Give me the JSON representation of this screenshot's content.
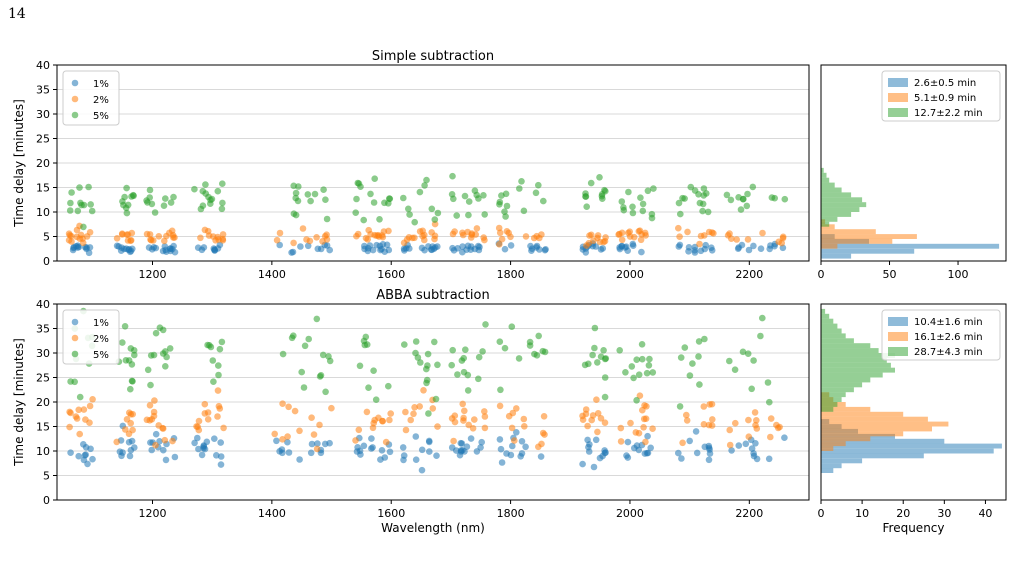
{
  "page": {
    "number": "14"
  },
  "colors": {
    "blue": "#1f77b4",
    "orange": "#ff7f0e",
    "green": "#2ca02c"
  },
  "chart_data": [
    {
      "type": "scatter",
      "title": "Simple subtraction",
      "ylabel": "Time delay [minutes]",
      "xlabel": "",
      "xlim": [
        1040,
        2300
      ],
      "ylim": [
        0,
        40
      ],
      "xticks": [
        1200,
        1400,
        1600,
        1800,
        2000,
        2200
      ],
      "yticks": [
        0,
        5,
        10,
        15,
        20,
        25,
        30,
        35,
        40
      ],
      "grid": "horizontal",
      "legend": "top-left",
      "series": [
        {
          "name": "1%",
          "color": "#1f77b4",
          "mean": 2.6,
          "sd": 0.5
        },
        {
          "name": "2%",
          "color": "#ff7f0e",
          "mean": 5.1,
          "sd": 0.9
        },
        {
          "name": "5%",
          "color": "#2ca02c",
          "mean": 12.7,
          "sd": 2.2
        }
      ],
      "clusters": [
        [
          1060,
          1100
        ],
        [
          1140,
          1170
        ],
        [
          1190,
          1240
        ],
        [
          1270,
          1320
        ],
        [
          1400,
          1500
        ],
        [
          1540,
          1600
        ],
        [
          1620,
          1680
        ],
        [
          1700,
          1760
        ],
        [
          1780,
          1860
        ],
        [
          1920,
          1960
        ],
        [
          1980,
          2040
        ],
        [
          2080,
          2140
        ],
        [
          2160,
          2260
        ]
      ]
    },
    {
      "type": "scatter",
      "title": "ABBA subtraction",
      "ylabel": "Time delay [minutes]",
      "xlabel": "Wavelength (nm)",
      "xlim": [
        1040,
        2300
      ],
      "ylim": [
        0,
        40
      ],
      "xticks": [
        1200,
        1400,
        1600,
        1800,
        2000,
        2200
      ],
      "yticks": [
        0,
        5,
        10,
        15,
        20,
        25,
        30,
        35,
        40
      ],
      "grid": "horizontal",
      "legend": "top-left",
      "series": [
        {
          "name": "1%",
          "color": "#1f77b4",
          "mean": 10.4,
          "sd": 1.6
        },
        {
          "name": "2%",
          "color": "#ff7f0e",
          "mean": 16.1,
          "sd": 2.6
        },
        {
          "name": "5%",
          "color": "#2ca02c",
          "mean": 28.7,
          "sd": 4.3
        }
      ],
      "clusters": [
        [
          1060,
          1100
        ],
        [
          1140,
          1170
        ],
        [
          1190,
          1240
        ],
        [
          1270,
          1320
        ],
        [
          1400,
          1500
        ],
        [
          1540,
          1600
        ],
        [
          1620,
          1680
        ],
        [
          1700,
          1760
        ],
        [
          1780,
          1860
        ],
        [
          1920,
          1960
        ],
        [
          1980,
          2040
        ],
        [
          2080,
          2140
        ],
        [
          2160,
          2260
        ]
      ]
    },
    {
      "type": "histogram",
      "orientation": "horizontal",
      "xlabel": "",
      "xlim": [
        0,
        135
      ],
      "xticks": [
        0,
        50,
        100
      ],
      "ylim": [
        0,
        40
      ],
      "legend": "top-right",
      "legend_labels": [
        "2.6±0.5 min",
        "5.1±0.9 min",
        "12.7±2.2 min"
      ],
      "series": [
        {
          "color": "#1f77b4",
          "bin_start": 0.5,
          "bin_width": 1.0,
          "counts": [
            22,
            68,
            130,
            35,
            10
          ]
        },
        {
          "color": "#ff7f0e",
          "bin_start": 2.5,
          "bin_width": 1.0,
          "counts": [
            12,
            52,
            70,
            40,
            10,
            3
          ]
        },
        {
          "color": "#2ca02c",
          "bin_start": 7.0,
          "bin_width": 1.0,
          "counts": [
            6,
            12,
            22,
            28,
            33,
            30,
            22,
            15,
            10,
            6,
            4,
            2
          ]
        }
      ]
    },
    {
      "type": "histogram",
      "orientation": "horizontal",
      "xlabel": "Frequency",
      "xlim": [
        0,
        45
      ],
      "xticks": [
        0,
        10,
        20,
        30,
        40
      ],
      "ylim": [
        0,
        40
      ],
      "legend": "top-right",
      "legend_labels": [
        "10.4±1.6 min",
        "16.1±2.6 min",
        "28.7±4.3 min"
      ],
      "series": [
        {
          "color": "#1f77b4",
          "bin_start": 5.5,
          "bin_width": 1.0,
          "counts": [
            3,
            5,
            10,
            25,
            42,
            44,
            30,
            18,
            9,
            5,
            2
          ]
        },
        {
          "color": "#ff7f0e",
          "bin_start": 10.0,
          "bin_width": 1.0,
          "counts": [
            3,
            6,
            12,
            20,
            27,
            31,
            26,
            20,
            12,
            6,
            3,
            2
          ]
        },
        {
          "color": "#2ca02c",
          "bin_start": 18.0,
          "bin_width": 1.0,
          "counts": [
            3,
            4,
            5,
            6,
            8,
            10,
            12,
            15,
            18,
            17,
            16,
            18,
            14,
            12,
            8,
            6,
            5,
            4,
            3,
            2,
            1
          ]
        }
      ]
    }
  ]
}
